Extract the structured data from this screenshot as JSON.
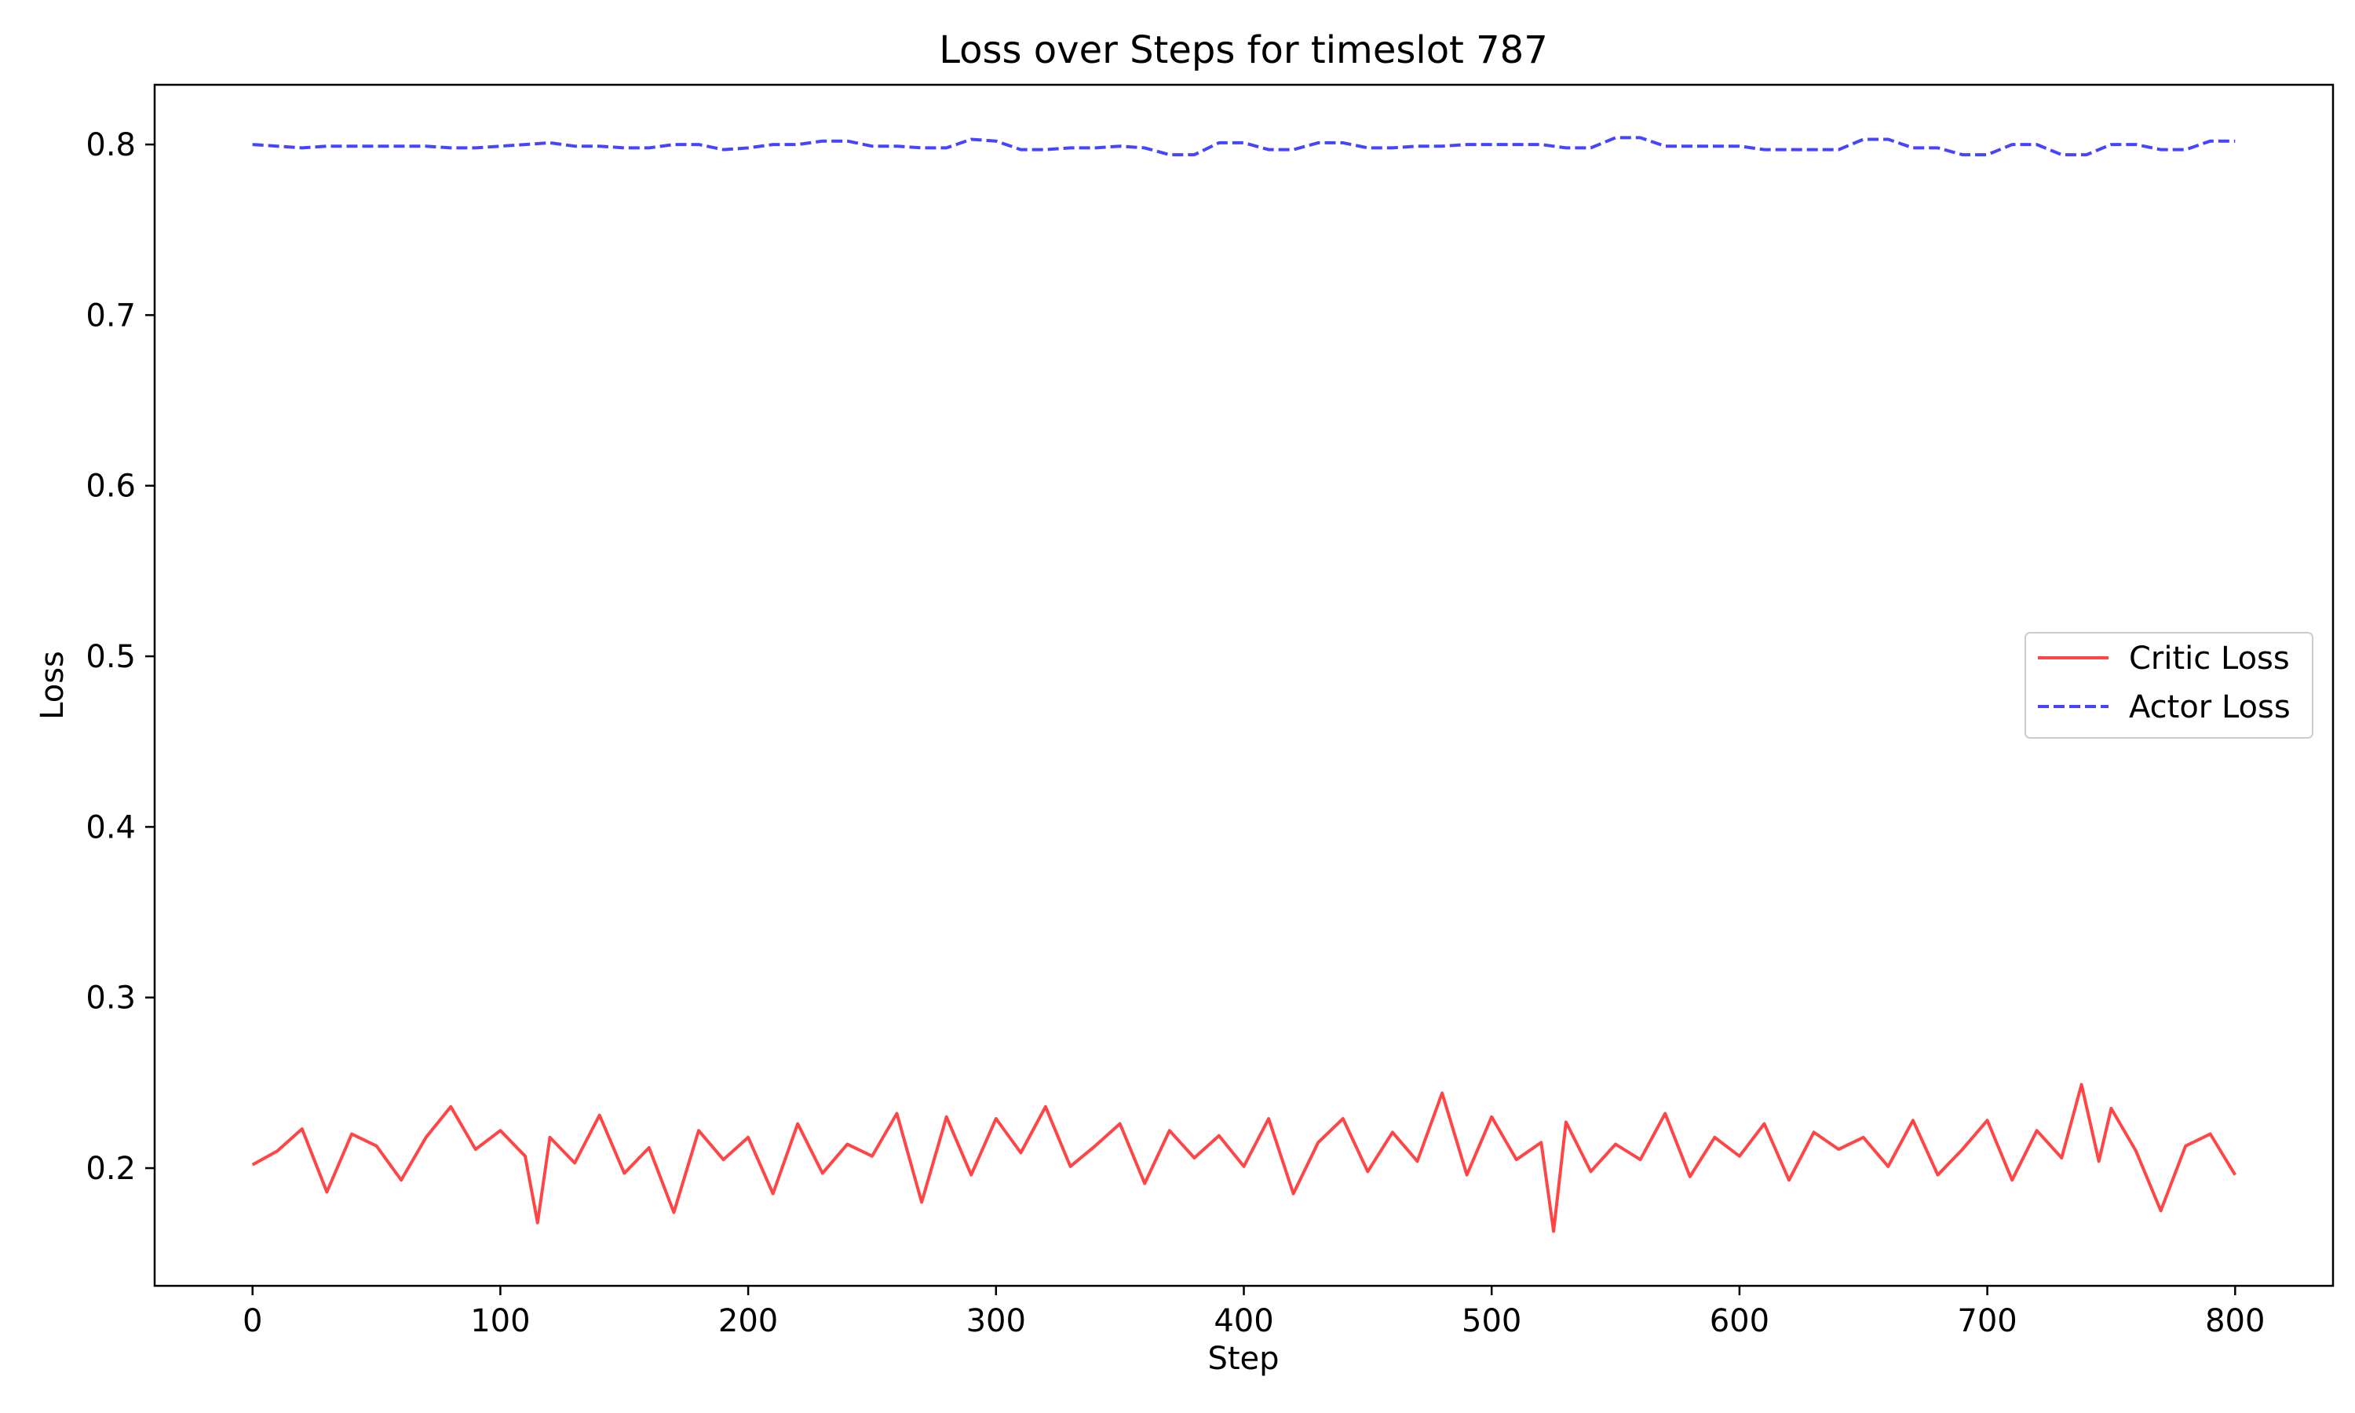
{
  "chart_data": {
    "type": "line",
    "title": "Loss over Steps for timeslot 787",
    "xlabel": "Step",
    "ylabel": "Loss",
    "xlim": [
      -39.5,
      839.5
    ],
    "ylim": [
      0.131,
      0.835
    ],
    "xticks": [
      0,
      100,
      200,
      300,
      400,
      500,
      600,
      700,
      800
    ],
    "yticks": [
      0.2,
      0.3,
      0.4,
      0.5,
      0.6,
      0.7,
      0.8
    ],
    "grid": false,
    "legend_position": "center-right",
    "series": [
      {
        "name": "Critic Loss",
        "color": "#ff4545",
        "style": "solid",
        "x": [
          0,
          10,
          20,
          30,
          40,
          50,
          60,
          70,
          80,
          90,
          100,
          110,
          115,
          120,
          130,
          140,
          150,
          160,
          170,
          180,
          190,
          200,
          210,
          220,
          230,
          240,
          250,
          260,
          270,
          280,
          290,
          300,
          310,
          320,
          330,
          340,
          350,
          360,
          370,
          380,
          390,
          400,
          410,
          420,
          430,
          440,
          450,
          460,
          470,
          480,
          490,
          500,
          510,
          520,
          525,
          530,
          540,
          550,
          560,
          570,
          580,
          590,
          600,
          610,
          620,
          630,
          640,
          650,
          660,
          670,
          680,
          690,
          700,
          710,
          720,
          730,
          738,
          745,
          750,
          760,
          770,
          780,
          790,
          800
        ],
        "y": [
          0.202,
          0.21,
          0.223,
          0.186,
          0.22,
          0.213,
          0.193,
          0.218,
          0.236,
          0.211,
          0.222,
          0.207,
          0.168,
          0.218,
          0.203,
          0.231,
          0.197,
          0.212,
          0.174,
          0.222,
          0.205,
          0.218,
          0.185,
          0.226,
          0.197,
          0.214,
          0.207,
          0.232,
          0.18,
          0.23,
          0.196,
          0.229,
          0.209,
          0.236,
          0.201,
          0.213,
          0.226,
          0.191,
          0.222,
          0.206,
          0.219,
          0.201,
          0.229,
          0.185,
          0.215,
          0.229,
          0.198,
          0.221,
          0.204,
          0.244,
          0.196,
          0.23,
          0.205,
          0.215,
          0.163,
          0.227,
          0.198,
          0.214,
          0.205,
          0.232,
          0.195,
          0.218,
          0.207,
          0.226,
          0.193,
          0.221,
          0.211,
          0.218,
          0.201,
          0.228,
          0.196,
          0.211,
          0.228,
          0.193,
          0.222,
          0.206,
          0.249,
          0.204,
          0.235,
          0.21,
          0.175,
          0.213,
          0.22,
          0.196
        ]
      },
      {
        "name": "Actor Loss",
        "color": "#4545ff",
        "style": "dashed",
        "x": [
          0,
          10,
          20,
          30,
          40,
          50,
          60,
          70,
          80,
          90,
          100,
          110,
          120,
          130,
          140,
          150,
          160,
          170,
          180,
          190,
          200,
          210,
          220,
          230,
          240,
          250,
          260,
          270,
          280,
          290,
          300,
          310,
          320,
          330,
          340,
          350,
          360,
          370,
          380,
          390,
          400,
          410,
          420,
          430,
          440,
          450,
          460,
          470,
          480,
          490,
          500,
          510,
          520,
          530,
          540,
          550,
          560,
          570,
          580,
          590,
          600,
          610,
          620,
          630,
          640,
          650,
          660,
          670,
          680,
          690,
          700,
          710,
          720,
          730,
          740,
          750,
          760,
          770,
          780,
          790,
          800
        ],
        "y": [
          0.8,
          0.799,
          0.798,
          0.799,
          0.799,
          0.799,
          0.799,
          0.799,
          0.798,
          0.798,
          0.799,
          0.8,
          0.801,
          0.799,
          0.799,
          0.798,
          0.798,
          0.8,
          0.8,
          0.797,
          0.798,
          0.8,
          0.8,
          0.802,
          0.802,
          0.799,
          0.799,
          0.798,
          0.798,
          0.803,
          0.802,
          0.797,
          0.797,
          0.798,
          0.798,
          0.799,
          0.798,
          0.794,
          0.794,
          0.801,
          0.801,
          0.797,
          0.797,
          0.801,
          0.801,
          0.798,
          0.798,
          0.799,
          0.799,
          0.8,
          0.8,
          0.8,
          0.8,
          0.798,
          0.798,
          0.804,
          0.804,
          0.799,
          0.799,
          0.799,
          0.799,
          0.797,
          0.797,
          0.797,
          0.797,
          0.803,
          0.803,
          0.798,
          0.798,
          0.794,
          0.794,
          0.8,
          0.8,
          0.794,
          0.794,
          0.8,
          0.8,
          0.797,
          0.797,
          0.802,
          0.802
        ]
      }
    ]
  }
}
